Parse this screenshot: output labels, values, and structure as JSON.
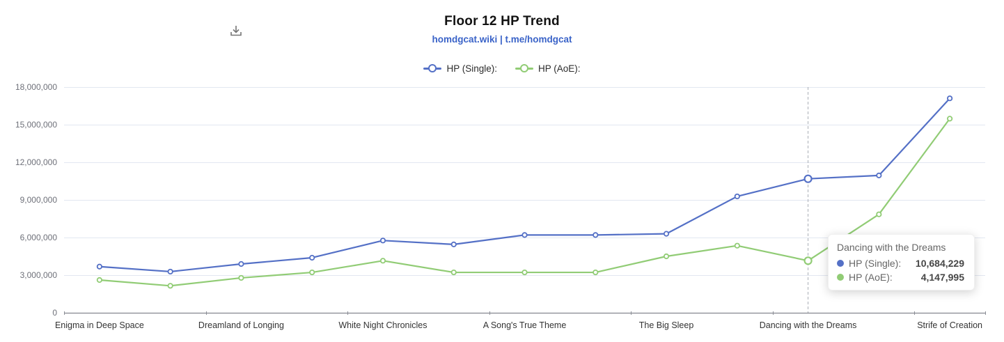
{
  "header": {
    "title": "Floor 12 HP Trend",
    "subtitle": "homdgcat.wiki | t.me/homdgcat"
  },
  "toolbox": {
    "icon": "download-icon"
  },
  "legend": [
    {
      "label": "HP (Single):",
      "color": "#5470c6"
    },
    {
      "label": "HP (AoE):",
      "color": "#91cc75"
    }
  ],
  "tooltip": {
    "title": "Dancing with the Dreams",
    "rows": [
      {
        "label": "HP (Single):",
        "value": "10,684,229",
        "color": "#5470c6"
      },
      {
        "label": "HP (AoE):",
        "value": "4,147,995",
        "color": "#91cc75"
      }
    ]
  },
  "chart_data": {
    "type": "line",
    "title": "Floor 12 HP Trend",
    "subtitle": "homdgcat.wiki | t.me/homdgcat",
    "categories": [
      "Enigma in Deep Space",
      "",
      "Dreamland of Longing",
      "",
      "White Night Chronicles",
      "",
      "A Song's True Theme",
      "",
      "The Big Sleep",
      "",
      "Dancing with the Dreams",
      "",
      "Strife of Creation"
    ],
    "series": [
      {
        "name": "HP (Single):",
        "color": "#5470c6",
        "values": [
          3680000,
          3280000,
          3890000,
          4390000,
          5760000,
          5450000,
          6200000,
          6200000,
          6300000,
          9280000,
          10684229,
          10950000,
          17100000
        ]
      },
      {
        "name": "HP (AoE):",
        "color": "#91cc75",
        "values": [
          2610000,
          2150000,
          2780000,
          3220000,
          4147995,
          3220000,
          3220000,
          3220000,
          4500000,
          5350000,
          4147995,
          7850000,
          15480000
        ]
      }
    ],
    "ylim": [
      0,
      18000000
    ],
    "y_ticks": [
      "0",
      "3,000,000",
      "6,000,000",
      "9,000,000",
      "12,000,000",
      "15,000,000",
      "18,000,000"
    ],
    "grid": true,
    "legend_position": "top",
    "highlight_index": 10,
    "axis_pointer": "dashed-vertical-line",
    "colors": {
      "grid_line": "#e2e7f1",
      "axis_line": "#6E7079",
      "axis_pointer": "#a9adb5"
    }
  }
}
